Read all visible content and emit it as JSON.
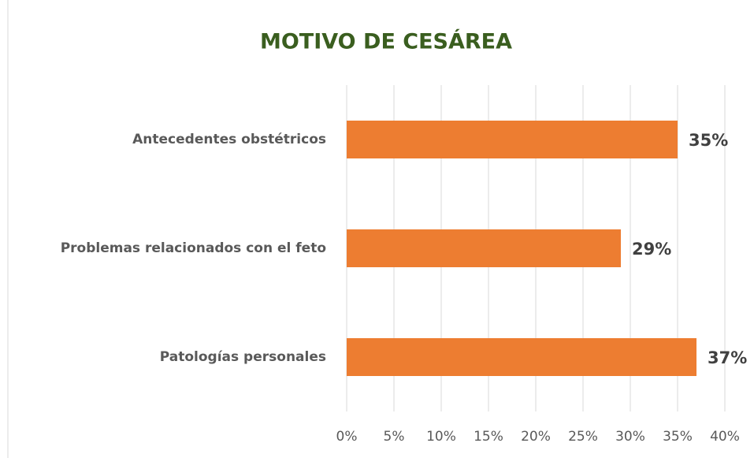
{
  "chart_data": {
    "type": "bar",
    "orientation": "horizontal",
    "title": "MOTIVO DE CESÁREA",
    "categories": [
      "Antecedentes obstétricos",
      "Problemas relacionados con el feto",
      "Patologías personales"
    ],
    "values": [
      35,
      29,
      37
    ],
    "value_labels": [
      "35%",
      "29%",
      "37%"
    ],
    "color": "#ed7d31",
    "xlim": [
      0,
      40
    ],
    "xticks": [
      {
        "value": 0,
        "label": "0%"
      },
      {
        "value": 5,
        "label": "5%"
      },
      {
        "value": 10,
        "label": "10%"
      },
      {
        "value": 15,
        "label": "15%"
      },
      {
        "value": 20,
        "label": "20%"
      },
      {
        "value": 25,
        "label": "25%"
      },
      {
        "value": 30,
        "label": "30%"
      },
      {
        "value": 35,
        "label": "35%"
      },
      {
        "value": 40,
        "label": "40%"
      }
    ],
    "grid": true
  }
}
